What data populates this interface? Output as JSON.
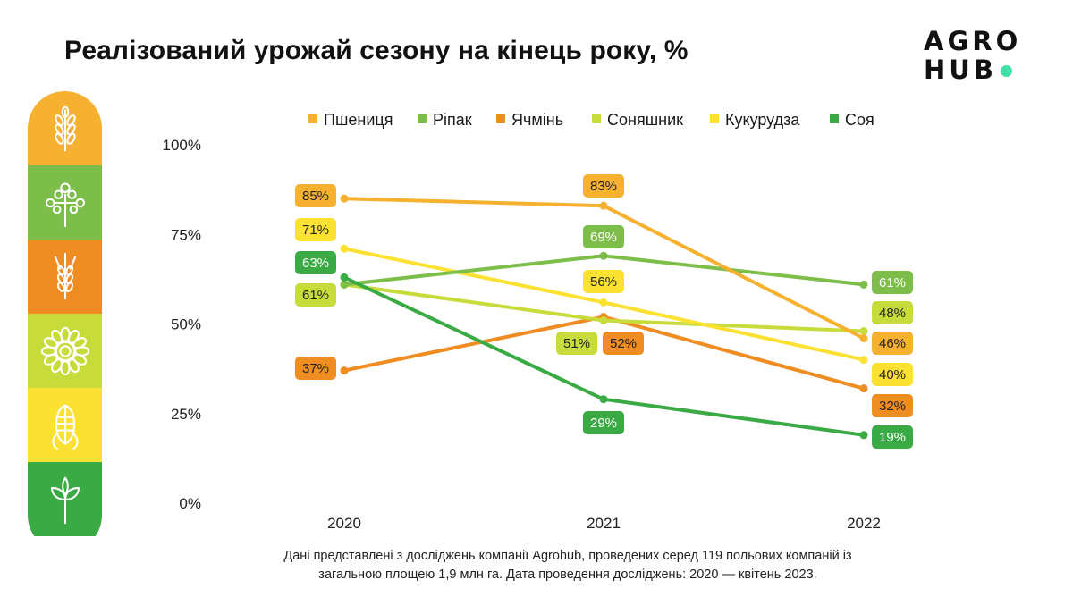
{
  "header": {
    "title": "Реалізований урожай сезону на кінець року, %",
    "logo_line1": "AGRO",
    "logo_line2": "HUB",
    "logo_dot_color": "#3ee0a5"
  },
  "footer": {
    "line1": "Дані представлені з досліджень компанії Agrohub, проведених серед 119 польових компаній із",
    "line2": "загальною площею 1,9 млн га. Дата проведення досліджень: 2020 — квітень 2023."
  },
  "sidebar_icons": [
    {
      "icon": "wheat-icon",
      "color": "#f5b12f"
    },
    {
      "icon": "rapeseed-icon",
      "color": "#7dbe4a"
    },
    {
      "icon": "barley-icon",
      "color": "#ef8c22"
    },
    {
      "icon": "sunflower-icon",
      "color": "#c7dc3b"
    },
    {
      "icon": "corn-icon",
      "color": "#fbe232"
    },
    {
      "icon": "soy-sprout-icon",
      "color": "#3aaa45"
    }
  ],
  "chart_data": {
    "type": "line",
    "title": "Реалізований урожай сезону на кінець року, %",
    "x": [
      "2020",
      "2021",
      "2022"
    ],
    "ylim": [
      0,
      100
    ],
    "yticks": [
      "0%",
      "25%",
      "50%",
      "75%",
      "100%"
    ],
    "grid": false,
    "legend_position": "top",
    "series": [
      {
        "name": "Пшениця",
        "color": "#f5b12f",
        "values": [
          85,
          83,
          46
        ],
        "labels": [
          "85%",
          "83%",
          "46%"
        ]
      },
      {
        "name": "Ріпак",
        "color": "#7dbe4a",
        "values": [
          61,
          69,
          61
        ],
        "labels": [
          "",
          "69%",
          "61%"
        ]
      },
      {
        "name": "Ячмінь",
        "color": "#ef8c22",
        "values": [
          37,
          52,
          32
        ],
        "labels": [
          "37%",
          "52%",
          "32%"
        ]
      },
      {
        "name": "Соняшник",
        "color": "#c7dc3b",
        "values": [
          61,
          51,
          48
        ],
        "labels": [
          "61%",
          "51%",
          "48%"
        ]
      },
      {
        "name": "Кукурудза",
        "color": "#fbe232",
        "values": [
          71,
          56,
          40
        ],
        "labels": [
          "71%",
          "56%",
          "40%"
        ]
      },
      {
        "name": "Соя",
        "color": "#3aaa45",
        "values": [
          63,
          29,
          19
        ],
        "labels": [
          "63%",
          "29%",
          "19%"
        ]
      }
    ]
  }
}
